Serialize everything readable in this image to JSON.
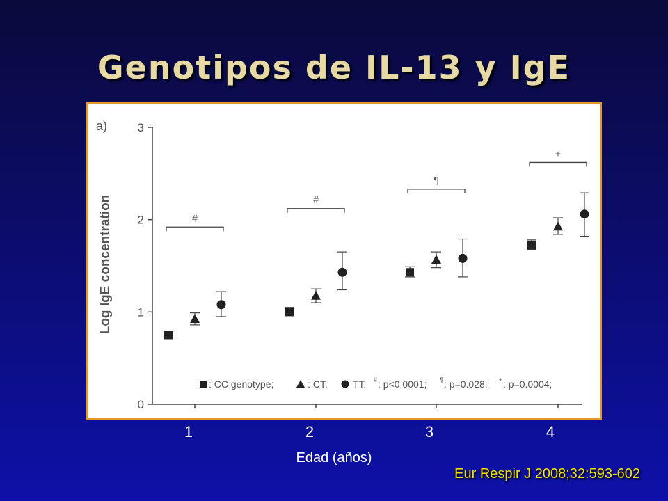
{
  "slide": {
    "title": "Genotipos de IL-13 y IgE",
    "citation": "Eur Respir J 2008;32:593-602"
  },
  "chart_data": {
    "type": "scatter",
    "panel_label": "a)",
    "title": "",
    "xlabel": "Edad (años)",
    "ylabel": "Log IgE concentration",
    "categories": [
      "1",
      "2",
      "3",
      "4"
    ],
    "ylim": [
      0,
      3
    ],
    "yticks": [
      "0",
      "1",
      "2",
      "3"
    ],
    "grid": false,
    "series": [
      {
        "name": "CC genotype",
        "marker": "square",
        "values": [
          0.75,
          1.0,
          1.43,
          1.72
        ],
        "err_low": [
          0.72,
          0.96,
          1.38,
          1.68
        ],
        "err_high": [
          0.79,
          1.05,
          1.49,
          1.78
        ]
      },
      {
        "name": "CT",
        "marker": "triangle",
        "values": [
          0.92,
          1.17,
          1.56,
          1.92
        ],
        "err_low": [
          0.86,
          1.1,
          1.48,
          1.84
        ],
        "err_high": [
          0.99,
          1.25,
          1.65,
          2.02
        ]
      },
      {
        "name": "TT",
        "marker": "circle",
        "values": [
          1.08,
          1.43,
          1.58,
          2.06
        ],
        "err_low": [
          0.95,
          1.24,
          1.38,
          1.82
        ],
        "err_high": [
          1.22,
          1.65,
          1.79,
          2.29
        ]
      }
    ],
    "significance": [
      {
        "category": "1",
        "symbol": "#",
        "level": 1.92
      },
      {
        "category": "2",
        "symbol": "#",
        "level": 2.12
      },
      {
        "category": "3",
        "symbol": "¶",
        "level": 2.33
      },
      {
        "category": "4",
        "symbol": "+",
        "level": 2.62
      }
    ],
    "legend": {
      "placement": "bottom-right",
      "cc_label": ": CC genotype;",
      "ct_label": ": CT;",
      "tt_label": "TT.",
      "hash_label": ": p<0.0001;",
      "para_label": ": p=0.028;",
      "plus_label": ": p=0.0004;",
      "hash_sym": "#",
      "para_sym": "¶",
      "plus_sym": "+"
    }
  }
}
